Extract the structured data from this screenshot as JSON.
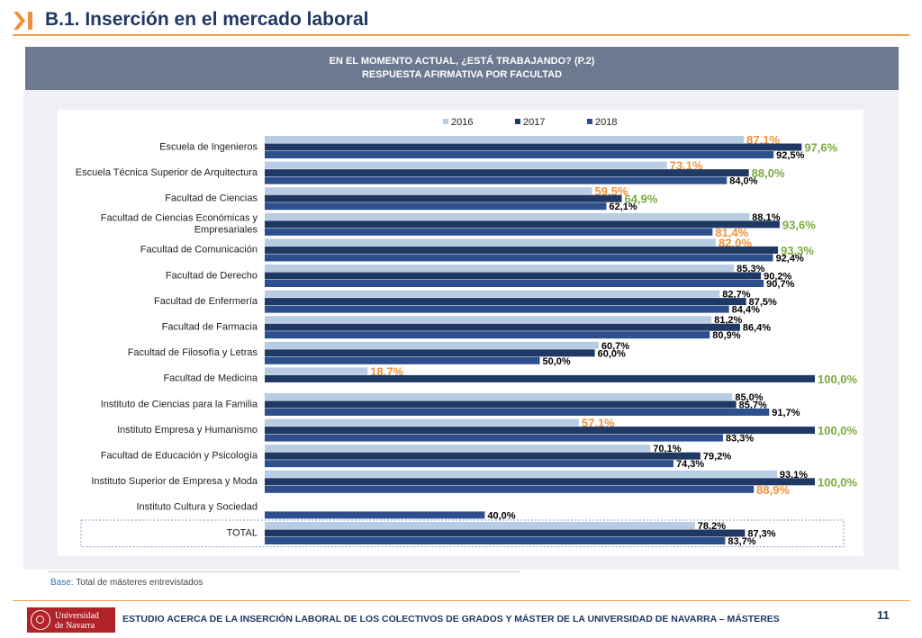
{
  "header": {
    "section_title": "B.1. Inserción en el mercado laboral"
  },
  "chart_header": {
    "line1": "EN EL MOMENTO ACTUAL, ¿ESTÁ TRABAJANDO? (P.2)",
    "line2": "RESPUESTA AFIRMATIVA POR FACULTAD"
  },
  "chart_data": {
    "type": "bar",
    "orientation": "horizontal",
    "legend_position": "top",
    "xlim": [
      0,
      100
    ],
    "grid": false,
    "categories": [
      "Escuela de Ingenieros",
      "Escuela Técnica Superior de Arquitectura",
      "Facultad de Ciencias",
      "Facultad de Ciencias Económicas y Empresariales",
      "Facultad de Comunicación",
      "Facultad de Derecho",
      "Facultad de Enfermería",
      "Facultad de Farmacia",
      "Facultad de Filosofía y Letras",
      "Facultad de Medicina",
      "Instituto de Ciencias para la Familia",
      "Instituto Empresa y Humanismo",
      "Facultad de Educación y Psicología",
      "Instituto Superior de Empresa y Moda",
      "Instituto Cultura y Sociedad",
      "TOTAL"
    ],
    "category_lines": [
      [
        "Escuela de Ingenieros"
      ],
      [
        "Escuela Técnica Superior de Arquitectura"
      ],
      [
        "Facultad de Ciencias"
      ],
      [
        "Facultad de Ciencias Económicas y",
        "Empresariales"
      ],
      [
        "Facultad de Comunicación"
      ],
      [
        "Facultad de Derecho"
      ],
      [
        "Facultad de Enfermería"
      ],
      [
        "Facultad de Farmacia"
      ],
      [
        "Facultad de Filosofía y Letras"
      ],
      [
        "Facultad de Medicina"
      ],
      [
        "Instituto de Ciencias para la Familia"
      ],
      [
        "Instituto Empresa y Humanismo"
      ],
      [
        "Facultad de Educación y Psicología"
      ],
      [
        "Instituto Superior de Empresa y Moda"
      ],
      [
        "Instituto Cultura y Sociedad"
      ],
      [
        "TOTAL"
      ]
    ],
    "series": [
      {
        "name": "2016",
        "color": "#b8cce4",
        "values": [
          87.1,
          73.1,
          59.5,
          88.1,
          82.0,
          85.3,
          82.7,
          81.2,
          60.7,
          18.7,
          85.0,
          57.1,
          70.1,
          93.1,
          null,
          78.2
        ],
        "labels": [
          "87,1%",
          "73,1%",
          "59,5%",
          "88,1%",
          "82,0%",
          "85,3%",
          "82,7%",
          "81,2%",
          "60,7%",
          "18,7%",
          "85,0%",
          "57,1%",
          "70,1%",
          "93,1%",
          "",
          "78,2%"
        ]
      },
      {
        "name": "2017",
        "color": "#1f3864",
        "values": [
          97.6,
          88.0,
          64.9,
          93.6,
          93.3,
          90.2,
          87.5,
          86.4,
          60.0,
          100.0,
          85.7,
          100.0,
          79.2,
          100.0,
          null,
          87.3
        ],
        "labels": [
          "97,6%",
          "88,0%",
          "64,9%",
          "93,6%",
          "93,3%",
          "90,2%",
          "87,5%",
          "86,4%",
          "60,0%",
          "100,0%",
          "85,7%",
          "100,0%",
          "79,2%",
          "100,0%",
          "",
          "87,3%"
        ]
      },
      {
        "name": "2018",
        "color": "#2e4f8e",
        "values": [
          92.5,
          84.0,
          62.1,
          81.4,
          92.4,
          90.7,
          84.4,
          80.9,
          50.0,
          null,
          91.7,
          83.3,
          74.3,
          88.9,
          40.0,
          83.7
        ],
        "labels": [
          "92,5%",
          "84,0%",
          "62,1%",
          "81,4%",
          "92,4%",
          "90,7%",
          "84,4%",
          "80,9%",
          "50,0%",
          "",
          "91,7%",
          "83,3%",
          "74,3%",
          "88,9%",
          "40,0%",
          "83,7%"
        ]
      }
    ],
    "label_colors": {
      "default": "#000000",
      "highlight_low": "#f0913a",
      "highlight_high": "#7aab3f"
    },
    "highlighted_labels": [
      {
        "category": 0,
        "series": 0,
        "color": "highlight_low"
      },
      {
        "category": 0,
        "series": 1,
        "color": "highlight_high"
      },
      {
        "category": 1,
        "series": 0,
        "color": "highlight_low"
      },
      {
        "category": 1,
        "series": 1,
        "color": "highlight_high"
      },
      {
        "category": 2,
        "series": 0,
        "color": "highlight_low"
      },
      {
        "category": 2,
        "series": 1,
        "color": "highlight_high"
      },
      {
        "category": 3,
        "series": 1,
        "color": "highlight_high"
      },
      {
        "category": 3,
        "series": 2,
        "color": "highlight_low"
      },
      {
        "category": 4,
        "series": 0,
        "color": "highlight_low"
      },
      {
        "category": 4,
        "series": 1,
        "color": "highlight_high"
      },
      {
        "category": 9,
        "series": 0,
        "color": "highlight_low"
      },
      {
        "category": 9,
        "series": 1,
        "color": "highlight_high"
      },
      {
        "category": 11,
        "series": 0,
        "color": "highlight_low"
      },
      {
        "category": 11,
        "series": 1,
        "color": "highlight_high"
      },
      {
        "category": 13,
        "series": 1,
        "color": "highlight_high"
      },
      {
        "category": 13,
        "series": 2,
        "color": "highlight_low"
      }
    ]
  },
  "base_note": {
    "label": "Base:",
    "text": "Total de másteres entrevistados"
  },
  "footer": {
    "logo_line1": "Universidad",
    "logo_line2": "de Navarra",
    "text": "ESTUDIO ACERCA DE LA INSERCIÓN LABORAL DE LOS COLECTIVOS DE GRADOS Y MÁSTER DE LA UNIVERSIDAD DE NAVARRA – MÁSTERES",
    "page_number": "11"
  }
}
